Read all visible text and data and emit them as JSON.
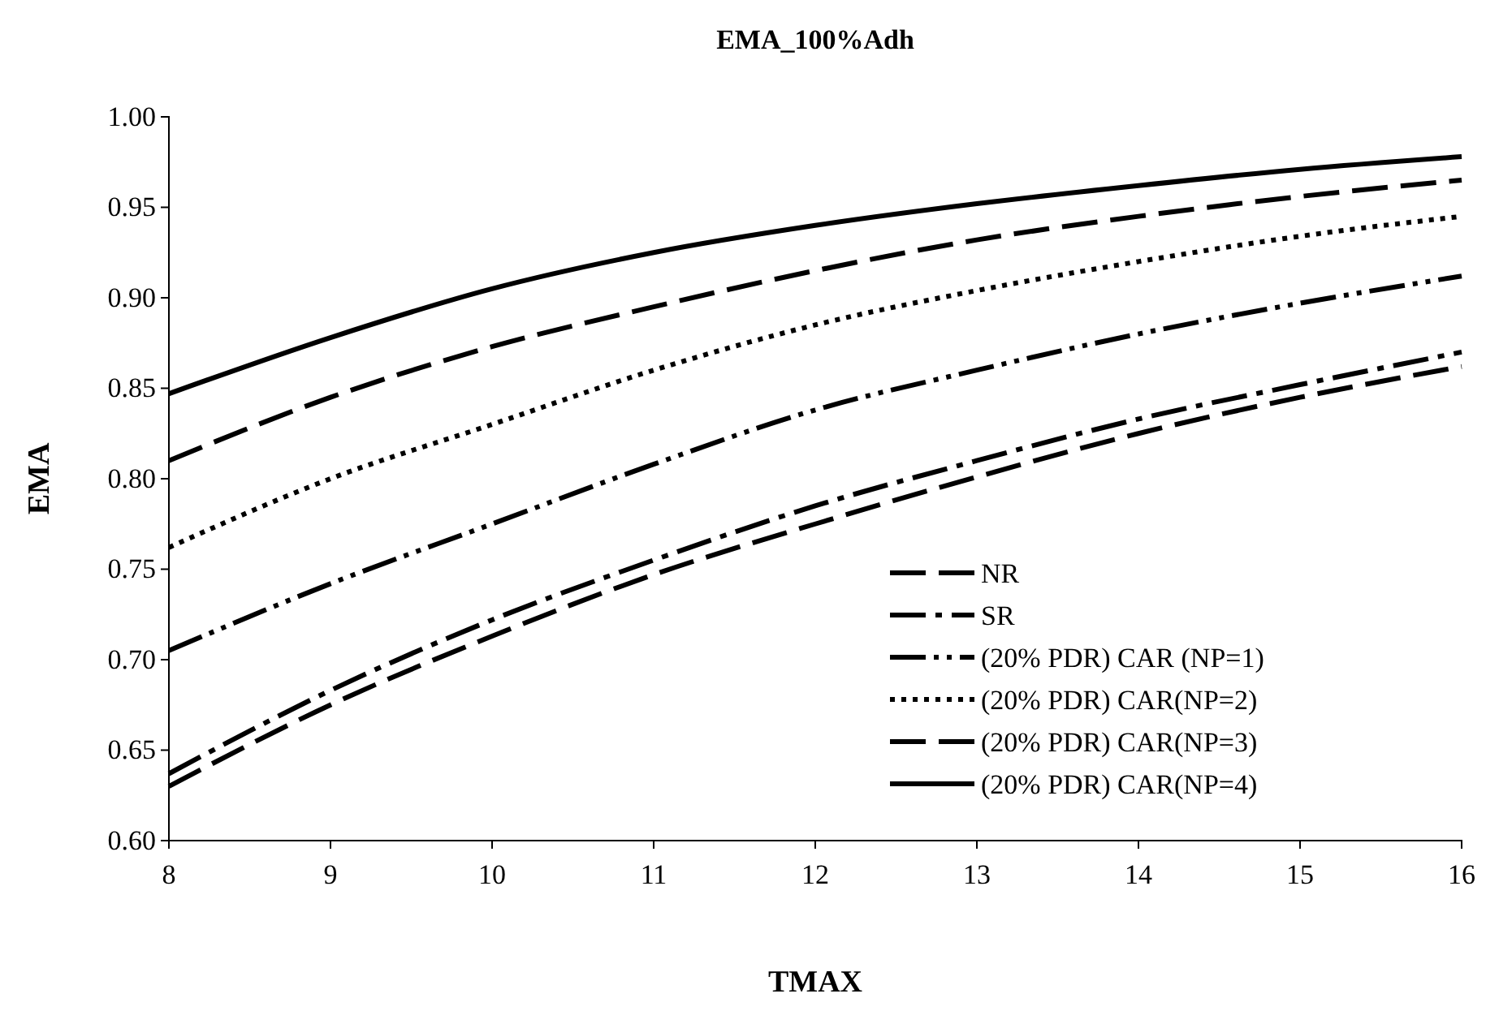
{
  "chart_data": {
    "type": "line",
    "title": "EMA_100%Adh",
    "xlabel": "TMAX",
    "ylabel": "EMA",
    "x": [
      8,
      9,
      10,
      11,
      12,
      13,
      14,
      15,
      16
    ],
    "xlim": [
      8,
      16
    ],
    "xticks": [
      8,
      9,
      10,
      11,
      12,
      13,
      14,
      15,
      16
    ],
    "ylim": [
      0.6,
      1.0
    ],
    "yticks": [
      {
        "value": 0.6,
        "label": "0.60"
      },
      {
        "value": 0.65,
        "label": "0.65"
      },
      {
        "value": 0.7,
        "label": "0.70"
      },
      {
        "value": 0.75,
        "label": "0.75"
      },
      {
        "value": 0.8,
        "label": "0.80"
      },
      {
        "value": 0.85,
        "label": "0.85"
      },
      {
        "value": 0.9,
        "label": "0.90"
      },
      {
        "value": 0.95,
        "label": "0.95"
      },
      {
        "value": 1.0,
        "label": "1.00"
      }
    ],
    "grid": false,
    "legend": "bottom right",
    "marker": "none",
    "series": [
      {
        "name": "NR",
        "color": "#000000",
        "line_style": "dashed",
        "values": [
          0.63,
          0.675,
          0.713,
          0.747,
          0.775,
          0.801,
          0.825,
          0.845,
          0.862
        ]
      },
      {
        "name": "SR",
        "color": "#000000",
        "line_style": "dashed",
        "values": [
          0.637,
          0.683,
          0.722,
          0.755,
          0.785,
          0.81,
          0.833,
          0.852,
          0.87
        ]
      },
      {
        "name": "(20% PDR)  CAR (NP=1)",
        "color": "#000000",
        "line_style": "dashed",
        "values": [
          0.705,
          0.742,
          0.775,
          0.808,
          0.838,
          0.86,
          0.88,
          0.897,
          0.912
        ]
      },
      {
        "name": "(20% PDR)  CAR(NP=2)",
        "color": "#000000",
        "line_style": "dotted",
        "values": [
          0.762,
          0.8,
          0.83,
          0.86,
          0.885,
          0.904,
          0.92,
          0.934,
          0.945
        ]
      },
      {
        "name": "(20% PDR)  CAR(NP=3)",
        "color": "#000000",
        "line_style": "dashed",
        "values": [
          0.81,
          0.845,
          0.873,
          0.895,
          0.915,
          0.932,
          0.945,
          0.956,
          0.965
        ]
      },
      {
        "name": "(20% PDR)  CAR(NP=4)",
        "color": "#000000",
        "line_style": "solid",
        "values": [
          0.847,
          0.878,
          0.905,
          0.925,
          0.94,
          0.952,
          0.962,
          0.971,
          0.978
        ]
      }
    ]
  }
}
